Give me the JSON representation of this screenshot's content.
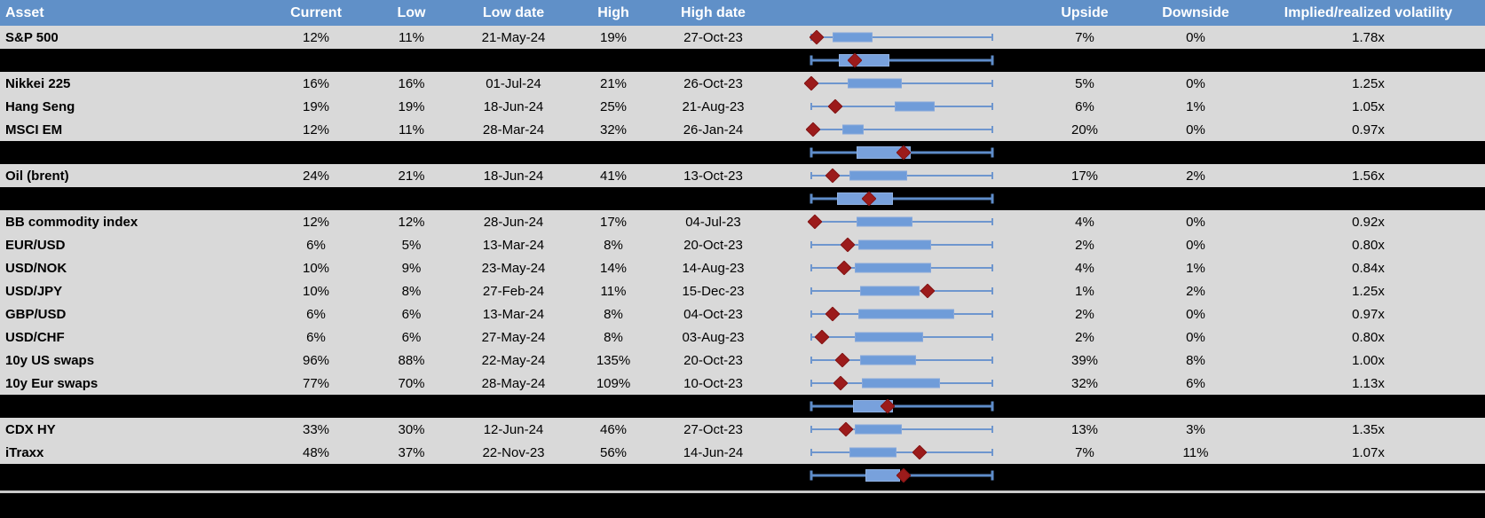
{
  "title": "Implied volatility ranges table",
  "colors": {
    "header_bg": "#6090C8",
    "header_text": "#FFFFFF",
    "row_bg": "#D9D9D9",
    "summary_row_bg": "#000000",
    "box_fill": "#6F9CD9",
    "box_border": "#85A7DB",
    "whisker": "#6E96CE",
    "summary_whisker": "#5E8CC9",
    "diamond_marker": "#9C1B1B",
    "footer_line": "#C9C9C9",
    "text": "#000000"
  },
  "chart_data": {
    "type": "table",
    "note": "Each row also carries a horizontal box-and-whisker range plot: whisker spans the 12m low-to-high range (0 to 1), box marks the middle range, red diamond marks the current level; values are fractions of the low-high span.",
    "columns": {
      "asset": "Asset",
      "current": "Current",
      "low": "Low",
      "low_date": "Low date",
      "high": "High",
      "high_date": "High date",
      "upside": "Upside",
      "downside": "Downside",
      "implied_realized": "Implied/realized volatility"
    },
    "rows": [
      {
        "kind": "asset",
        "asset": "S&P 500",
        "current": "12%",
        "low": "11%",
        "low_date": "21-May-24",
        "high": "19%",
        "high_date": "27-Oct-23",
        "upside": "7%",
        "downside": "0%",
        "implied_realized": "1.78x",
        "range_plot": {
          "box_start": 0.12,
          "box_end": 0.34,
          "marker": 0.03
        }
      },
      {
        "kind": "summary",
        "range_plot": {
          "box_start": 0.15,
          "box_end": 0.43,
          "marker": 0.24
        }
      },
      {
        "kind": "asset",
        "asset": "Nikkei 225",
        "current": "16%",
        "low": "16%",
        "low_date": "01-Jul-24",
        "high": "21%",
        "high_date": "26-Oct-23",
        "upside": "5%",
        "downside": "0%",
        "implied_realized": "1.25x",
        "range_plot": {
          "box_start": 0.2,
          "box_end": 0.5,
          "marker": 0.0
        }
      },
      {
        "kind": "asset",
        "asset": "Hang Seng",
        "current": "19%",
        "low": "19%",
        "low_date": "18-Jun-24",
        "high": "25%",
        "high_date": "21-Aug-23",
        "upside": "6%",
        "downside": "1%",
        "implied_realized": "1.05x",
        "range_plot": {
          "box_start": 0.46,
          "box_end": 0.68,
          "marker": 0.13
        }
      },
      {
        "kind": "asset",
        "asset": "MSCI EM",
        "current": "12%",
        "low": "11%",
        "low_date": "28-Mar-24",
        "high": "32%",
        "high_date": "26-Jan-24",
        "upside": "20%",
        "downside": "0%",
        "implied_realized": "0.97x",
        "range_plot": {
          "box_start": 0.17,
          "box_end": 0.29,
          "marker": 0.01
        }
      },
      {
        "kind": "summary",
        "range_plot": {
          "box_start": 0.25,
          "box_end": 0.55,
          "marker": 0.51
        }
      },
      {
        "kind": "asset",
        "asset": "Oil (brent)",
        "current": "24%",
        "low": "21%",
        "low_date": "18-Jun-24",
        "high": "41%",
        "high_date": "13-Oct-23",
        "upside": "17%",
        "downside": "2%",
        "implied_realized": "1.56x",
        "range_plot": {
          "box_start": 0.21,
          "box_end": 0.53,
          "marker": 0.12
        }
      },
      {
        "kind": "summary",
        "range_plot": {
          "box_start": 0.14,
          "box_end": 0.45,
          "marker": 0.32
        }
      },
      {
        "kind": "asset",
        "asset": "BB commodity index",
        "current": "12%",
        "low": "12%",
        "low_date": "28-Jun-24",
        "high": "17%",
        "high_date": "04-Jul-23",
        "upside": "4%",
        "downside": "0%",
        "implied_realized": "0.92x",
        "range_plot": {
          "box_start": 0.25,
          "box_end": 0.56,
          "marker": 0.02
        }
      },
      {
        "kind": "asset",
        "asset": "EUR/USD",
        "current": "6%",
        "low": "5%",
        "low_date": "13-Mar-24",
        "high": "8%",
        "high_date": "20-Oct-23",
        "upside": "2%",
        "downside": "0%",
        "implied_realized": "0.80x",
        "range_plot": {
          "box_start": 0.26,
          "box_end": 0.66,
          "marker": 0.2
        }
      },
      {
        "kind": "asset",
        "asset": "USD/NOK",
        "current": "10%",
        "low": "9%",
        "low_date": "23-May-24",
        "high": "14%",
        "high_date": "14-Aug-23",
        "upside": "4%",
        "downside": "1%",
        "implied_realized": "0.84x",
        "range_plot": {
          "box_start": 0.24,
          "box_end": 0.66,
          "marker": 0.18
        }
      },
      {
        "kind": "asset",
        "asset": "USD/JPY",
        "current": "10%",
        "low": "8%",
        "low_date": "27-Feb-24",
        "high": "11%",
        "high_date": "15-Dec-23",
        "upside": "1%",
        "downside": "2%",
        "implied_realized": "1.25x",
        "range_plot": {
          "box_start": 0.27,
          "box_end": 0.6,
          "marker": 0.64
        }
      },
      {
        "kind": "asset",
        "asset": "GBP/USD",
        "current": "6%",
        "low": "6%",
        "low_date": "13-Mar-24",
        "high": "8%",
        "high_date": "04-Oct-23",
        "upside": "2%",
        "downside": "0%",
        "implied_realized": "0.97x",
        "range_plot": {
          "box_start": 0.26,
          "box_end": 0.79,
          "marker": 0.12
        }
      },
      {
        "kind": "asset",
        "asset": "USD/CHF",
        "current": "6%",
        "low": "6%",
        "low_date": "27-May-24",
        "high": "8%",
        "high_date": "03-Aug-23",
        "upside": "2%",
        "downside": "0%",
        "implied_realized": "0.80x",
        "range_plot": {
          "box_start": 0.24,
          "box_end": 0.62,
          "marker": 0.06
        }
      },
      {
        "kind": "asset",
        "asset": "10y US swaps",
        "current": "96%",
        "low": "88%",
        "low_date": "22-May-24",
        "high": "135%",
        "high_date": "20-Oct-23",
        "upside": "39%",
        "downside": "8%",
        "implied_realized": "1.00x",
        "range_plot": {
          "box_start": 0.27,
          "box_end": 0.58,
          "marker": 0.17
        }
      },
      {
        "kind": "asset",
        "asset": "10y Eur swaps",
        "current": "77%",
        "low": "70%",
        "low_date": "28-May-24",
        "high": "109%",
        "high_date": "10-Oct-23",
        "upside": "32%",
        "downside": "6%",
        "implied_realized": "1.13x",
        "range_plot": {
          "box_start": 0.28,
          "box_end": 0.71,
          "marker": 0.16
        }
      },
      {
        "kind": "summary",
        "range_plot": {
          "box_start": 0.23,
          "box_end": 0.45,
          "marker": 0.42
        }
      },
      {
        "kind": "asset",
        "asset": "CDX HY",
        "current": "33%",
        "low": "30%",
        "low_date": "12-Jun-24",
        "high": "46%",
        "high_date": "27-Oct-23",
        "upside": "13%",
        "downside": "3%",
        "implied_realized": "1.35x",
        "range_plot": {
          "box_start": 0.24,
          "box_end": 0.5,
          "marker": 0.19
        }
      },
      {
        "kind": "asset",
        "asset": "iTraxx",
        "current": "48%",
        "low": "37%",
        "low_date": "22-Nov-23",
        "high": "56%",
        "high_date": "14-Jun-24",
        "upside": "7%",
        "downside": "11%",
        "implied_realized": "1.07x",
        "range_plot": {
          "box_start": 0.21,
          "box_end": 0.47,
          "marker": 0.6
        }
      },
      {
        "kind": "summary",
        "range_plot": {
          "box_start": 0.3,
          "box_end": 0.49,
          "marker": 0.51
        }
      }
    ]
  }
}
